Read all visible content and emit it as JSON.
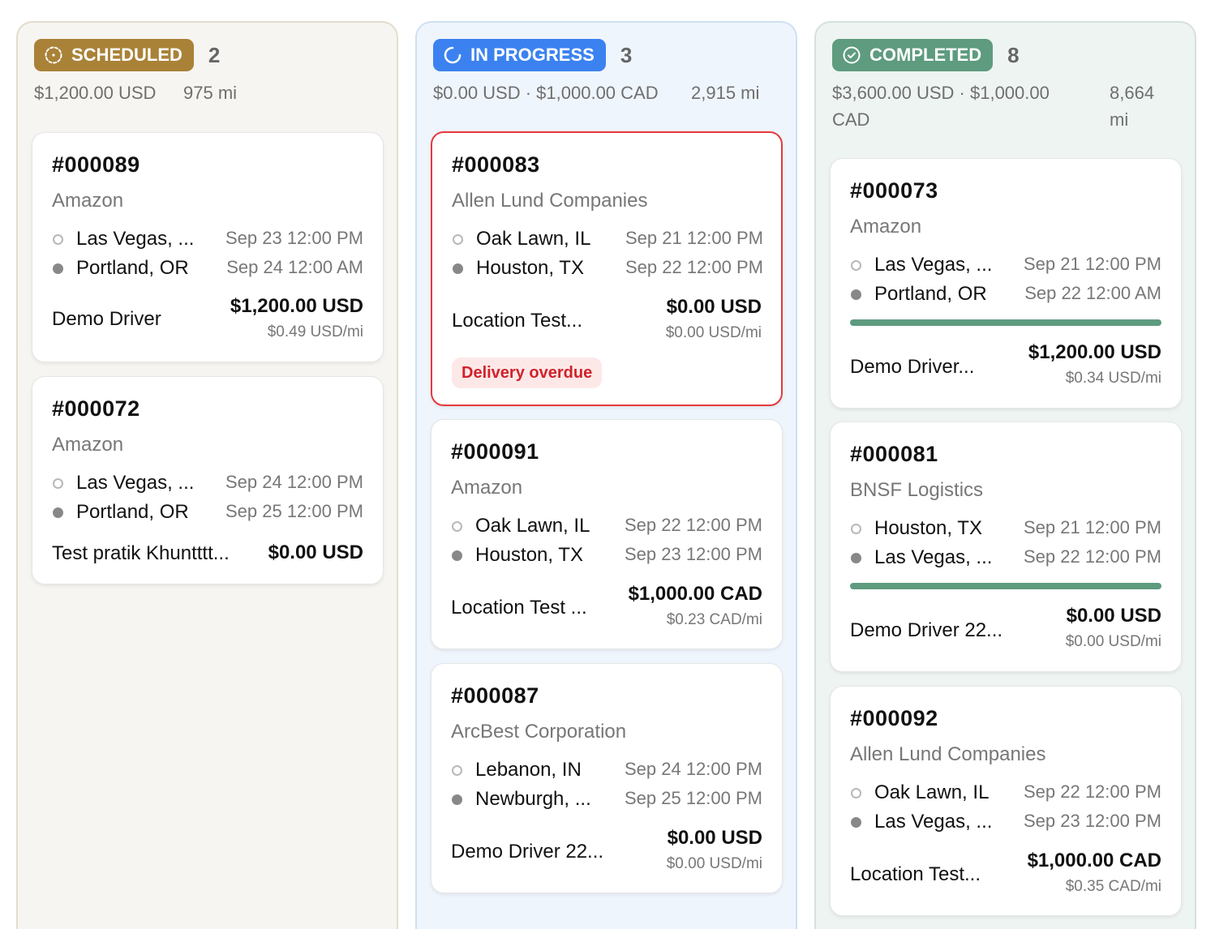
{
  "columns": [
    {
      "status": "SCHEDULED",
      "count": "2",
      "summary": {
        "money": "$1,200.00 USD",
        "miles": "975 mi"
      },
      "cards": [
        {
          "id": "#000089",
          "customer": "Amazon",
          "origin": {
            "city": "Las Vegas, ...",
            "time": "Sep 23 12:00 PM"
          },
          "destination": {
            "city": "Portland, OR",
            "time": "Sep 24 12:00 AM"
          },
          "driver": "Demo Driver",
          "rate": "$1,200.00 USD",
          "per_mile": "$0.49 USD/mi"
        },
        {
          "id": "#000072",
          "customer": "Amazon",
          "origin": {
            "city": "Las Vegas, ...",
            "time": "Sep 24 12:00 PM"
          },
          "destination": {
            "city": "Portland, OR",
            "time": "Sep 25 12:00 PM"
          },
          "driver": "Test pratik Khuntttt...",
          "rate": "$0.00 USD"
        }
      ]
    },
    {
      "status": "IN PROGRESS",
      "count": "3",
      "summary": {
        "money": "$0.00 USD · $1,000.00 CAD",
        "miles": "2,915 mi"
      },
      "cards": [
        {
          "id": "#000083",
          "customer": "Allen Lund Companies",
          "origin": {
            "city": "Oak Lawn, IL",
            "time": "Sep 21 12:00 PM"
          },
          "destination": {
            "city": "Houston, TX",
            "time": "Sep 22 12:00 PM"
          },
          "driver": "Location Test...",
          "rate": "$0.00 USD",
          "per_mile": "$0.00 USD/mi",
          "alert": "Delivery overdue"
        },
        {
          "id": "#000091",
          "customer": "Amazon",
          "origin": {
            "city": "Oak Lawn, IL",
            "time": "Sep 22 12:00 PM"
          },
          "destination": {
            "city": "Houston, TX",
            "time": "Sep 23 12:00 PM"
          },
          "driver": "Location Test ...",
          "rate": "$1,000.00 CAD",
          "per_mile": "$0.23 CAD/mi"
        },
        {
          "id": "#000087",
          "customer": "ArcBest Corporation",
          "origin": {
            "city": "Lebanon, IN",
            "time": "Sep 24 12:00 PM"
          },
          "destination": {
            "city": "Newburgh, ...",
            "time": "Sep 25 12:00 PM"
          },
          "driver": "Demo Driver 22...",
          "rate": "$0.00 USD",
          "per_mile": "$0.00 USD/mi"
        }
      ]
    },
    {
      "status": "COMPLETED",
      "count": "8",
      "summary": {
        "money_line1": "$3,600.00 USD · $1,000.00",
        "money_line2": "CAD",
        "miles_line1": "8,664",
        "miles_line2": "mi"
      },
      "cards": [
        {
          "id": "#000073",
          "customer": "Amazon",
          "origin": {
            "city": "Las Vegas, ...",
            "time": "Sep 21 12:00 PM"
          },
          "destination": {
            "city": "Portland, OR",
            "time": "Sep 22 12:00 AM"
          },
          "progress": 1.0,
          "driver": "Demo Driver...",
          "rate": "$1,200.00 USD",
          "per_mile": "$0.34 USD/mi"
        },
        {
          "id": "#000081",
          "customer": "BNSF Logistics",
          "origin": {
            "city": "Houston, TX",
            "time": "Sep 21 12:00 PM"
          },
          "destination": {
            "city": "Las Vegas, ...",
            "time": "Sep 22 12:00 PM"
          },
          "progress": 1.0,
          "driver": "Demo Driver 22...",
          "rate": "$0.00 USD",
          "per_mile": "$0.00 USD/mi"
        },
        {
          "id": "#000092",
          "customer": "Allen Lund Companies",
          "origin": {
            "city": "Oak Lawn, IL",
            "time": "Sep 22 12:00 PM"
          },
          "destination": {
            "city": "Las Vegas, ...",
            "time": "Sep 23 12:00 PM"
          },
          "driver": "Location Test...",
          "rate": "$1,000.00 CAD",
          "per_mile": "$0.35 CAD/mi"
        }
      ]
    }
  ]
}
